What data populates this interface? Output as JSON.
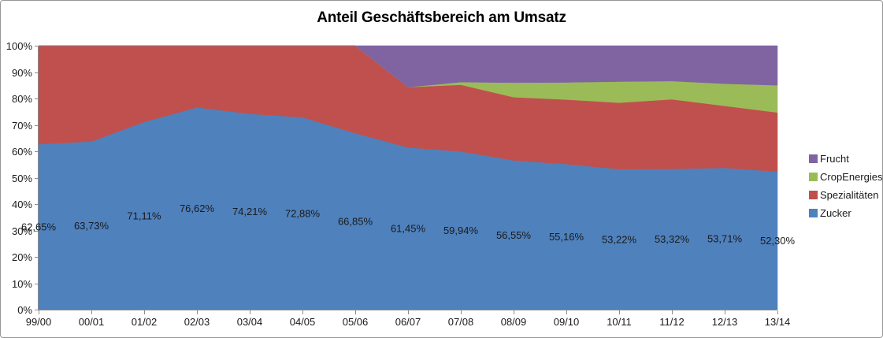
{
  "title": "Anteil Geschäftsbereich am Umsatz",
  "chart_data": {
    "type": "area",
    "stacking": "percent",
    "title": "Anteil Geschäftsbereich am Umsatz",
    "categories": [
      "99/00",
      "00/01",
      "01/02",
      "02/03",
      "03/04",
      "04/05",
      "05/06",
      "06/07",
      "07/08",
      "08/09",
      "09/10",
      "10/11",
      "11/12",
      "12/13",
      "13/14"
    ],
    "series": [
      {
        "name": "Zucker",
        "color": "#4F81BD",
        "values": [
          62.65,
          63.73,
          71.11,
          76.62,
          74.21,
          72.88,
          66.85,
          61.45,
          59.94,
          56.55,
          55.16,
          53.22,
          53.32,
          53.71,
          52.3
        ]
      },
      {
        "name": "Spezialitäten",
        "color": "#C0504D",
        "values": [
          37.35,
          36.27,
          28.89,
          23.38,
          25.79,
          27.12,
          33.15,
          22.85,
          25.26,
          23.95,
          24.44,
          25.18,
          26.38,
          23.49,
          22.4
        ]
      },
      {
        "name": "CropEnergies",
        "color": "#9BBB59",
        "values": [
          0,
          0,
          0,
          0,
          0,
          0,
          0,
          0,
          1.0,
          5.5,
          6.5,
          8.0,
          6.9,
          8.4,
          10.3
        ]
      },
      {
        "name": "Frucht",
        "color": "#8064A2",
        "values": [
          0,
          0,
          0,
          0,
          0,
          0,
          0,
          15.7,
          13.8,
          14.0,
          13.9,
          13.6,
          13.4,
          14.4,
          15.0
        ]
      }
    ],
    "data_labels": {
      "series": "Zucker",
      "labels": [
        "62,65%",
        "63,73%",
        "71,11%",
        "76,62%",
        "74,21%",
        "72,88%",
        "66,85%",
        "61,45%",
        "59,94%",
        "56,55%",
        "55,16%",
        "53,22%",
        "53,32%",
        "53,71%",
        "52,30%"
      ]
    },
    "y_axis": {
      "min": 0,
      "max": 100,
      "step": 10,
      "ticks": [
        "0%",
        "10%",
        "20%",
        "30%",
        "40%",
        "50%",
        "60%",
        "70%",
        "80%",
        "90%",
        "100%"
      ]
    },
    "legend": {
      "position": "right",
      "entries": [
        "Frucht",
        "CropEnergies",
        "Spezialitäten",
        "Zucker"
      ]
    },
    "grid": false
  },
  "colors": {
    "axis": "#8C8C8C",
    "text": "#1a1a1a",
    "border": "#969696",
    "background": "#FFFFFF"
  }
}
